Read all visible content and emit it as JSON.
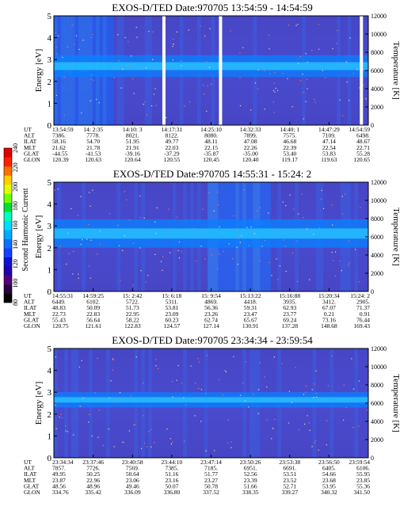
{
  "chart_data": [
    {
      "type": "heatmap",
      "title": "EXOS-D/TED   Date:970705   13:54:59 - 14:54:59",
      "ylabel": "Energy [eV]",
      "y2label": "Temperature [K]",
      "ylim": [
        0,
        5
      ],
      "y2lim": [
        0,
        12000
      ],
      "yticks": [
        0,
        1,
        2,
        3,
        4,
        5
      ],
      "y2ticks": [
        0,
        2000,
        4000,
        6000,
        8000,
        10000,
        12000
      ],
      "band": [
        2.2,
        3.2
      ],
      "gaps": [
        0.35,
        0.53,
        0.978
      ],
      "ephemeris_labels": [
        "UT",
        "ALT",
        "ILAT",
        "MLT",
        "GLAT",
        "GLON"
      ],
      "ephemeris": [
        [
          "13:54:59",
          "14: 2:35",
          "14:10: 3",
          "14:17:31",
          "14:25:10",
          "14:32:33",
          "14:40: 1",
          "14:47:29",
          "14:54:59"
        ],
        [
          "7386.",
          "7778.",
          "8021.",
          "8122.",
          "8080.",
          "7899.",
          "7575.",
          "7109.",
          "6498."
        ],
        [
          "58.16",
          "54.70",
          "51.95",
          "49.77",
          "48.11",
          "47.08",
          "46.68",
          "47.14",
          "48.67"
        ],
        [
          "21.62",
          "21.78",
          "21.91",
          "22.03",
          "22.15",
          "22.26",
          "22.39",
          "22.54",
          "22.71"
        ],
        [
          "-44.55",
          "-41.53",
          "-39.16",
          "-37.29",
          "-35.87",
          "-35.00",
          "53.40",
          "53.83",
          "55.28"
        ],
        [
          "120.39",
          "120.63",
          "120.64",
          "120.55",
          "120.45",
          "120.40",
          "119.17",
          "119.63",
          "120.65"
        ]
      ]
    },
    {
      "type": "heatmap",
      "title": "EXOS-D/TED   Date:970705   14:55:31 - 15:24: 2",
      "ylabel": "Energy [eV]",
      "y2label": "Temperature [K]",
      "ylim": [
        0,
        5
      ],
      "y2lim": [
        0,
        12000
      ],
      "yticks": [
        0,
        1,
        2,
        3,
        4,
        5
      ],
      "y2ticks": [
        0,
        2000,
        4000,
        6000,
        8000,
        10000,
        12000
      ],
      "band": [
        2.0,
        3.3
      ],
      "gaps": [],
      "ephemeris_labels": [
        "UT",
        "ALT",
        "ILAT",
        "MLT",
        "GLAT",
        "GLON"
      ],
      "ephemeris": [
        [
          "14:55:31",
          "14:59:25",
          "15: 2:42",
          "15: 6:18",
          "15: 9:54",
          "15:13:22",
          "15:16:88",
          "15:20:34",
          "15:24: 2"
        ],
        [
          "6449.",
          "6102.",
          "5722.",
          "5311.",
          "4869.",
          "4418.",
          "3935.",
          "3412.",
          "2905."
        ],
        [
          "48.83",
          "50.09",
          "51.73",
          "53.81",
          "56.36",
          "59.31",
          "62.93",
          "67.07",
          "71.37"
        ],
        [
          "22.73",
          "22.83",
          "22.95",
          "23.09",
          "23.26",
          "23.47",
          "23.77",
          "0.21",
          "0.91"
        ],
        [
          "55.43",
          "56.64",
          "58.22",
          "60.23",
          "62.74",
          "65.67",
          "69.24",
          "73.16",
          "76.44"
        ],
        [
          "120.75",
          "121.61",
          "122.83",
          "124.57",
          "127.14",
          "130.91",
          "137.28",
          "148.68",
          "169.43"
        ]
      ]
    },
    {
      "type": "heatmap",
      "title": "EXOS-D/TED   Date:970705   23:34:34 - 23:59:54",
      "ylabel": "Energy [eV]",
      "y2label": "Temperature [K]",
      "ylim": [
        0,
        5
      ],
      "y2lim": [
        0,
        12000
      ],
      "yticks": [
        0,
        1,
        2,
        3,
        4,
        5
      ],
      "y2ticks": [
        0,
        2000,
        4000,
        6000,
        8000,
        10000,
        12000
      ],
      "band": [
        2.3,
        3.0
      ],
      "gaps": [],
      "ephemeris_labels": [
        "UT",
        "ALT",
        "ILAT",
        "MLT",
        "GLAT",
        "GLON"
      ],
      "ephemeris": [
        [
          "23:34:34",
          "23:37:46",
          "23:40:58",
          "23:44:10",
          "23:47:14",
          "23:50:26",
          "23:53:38",
          "23:56:50",
          "23:59:54"
        ],
        [
          "7857.",
          "7726.",
          "7569.",
          "7385.",
          "7185.",
          "6951.",
          "6691.",
          "6405.",
          "6106."
        ],
        [
          "49.95",
          "50.25",
          "50.64",
          "51.16",
          "51.77",
          "52.56",
          "53.51",
          "54.66",
          "55.95"
        ],
        [
          "23.87",
          "22.96",
          "23.06",
          "23.16",
          "23.27",
          "23.39",
          "23.52",
          "23.68",
          "23.85"
        ],
        [
          "48.56",
          "48.96",
          "49.46",
          "50.07",
          "50.78",
          "51.66",
          "52.71",
          "53.95",
          "55.36"
        ],
        [
          "334.76",
          "335.42",
          "336.09",
          "336.80",
          "337.52",
          "338.35",
          "339.27",
          "340.32",
          "341.50"
        ]
      ]
    }
  ],
  "colorbar": {
    "label": "Second Harmonic Current",
    "ticks": [
      80,
      100,
      120,
      140,
      160,
      180,
      200,
      220,
      240
    ],
    "range": [
      80,
      240
    ],
    "colors": [
      "#000000",
      "#2a0040",
      "#55007a",
      "#2200aa",
      "#1010d0",
      "#1440ff",
      "#0a70ff",
      "#00a8ff",
      "#00ddff",
      "#00ffc0",
      "#00e030",
      "#70ff00",
      "#e0ff00",
      "#ffcc00",
      "#ff7000",
      "#ff2000",
      "#e00000"
    ]
  }
}
